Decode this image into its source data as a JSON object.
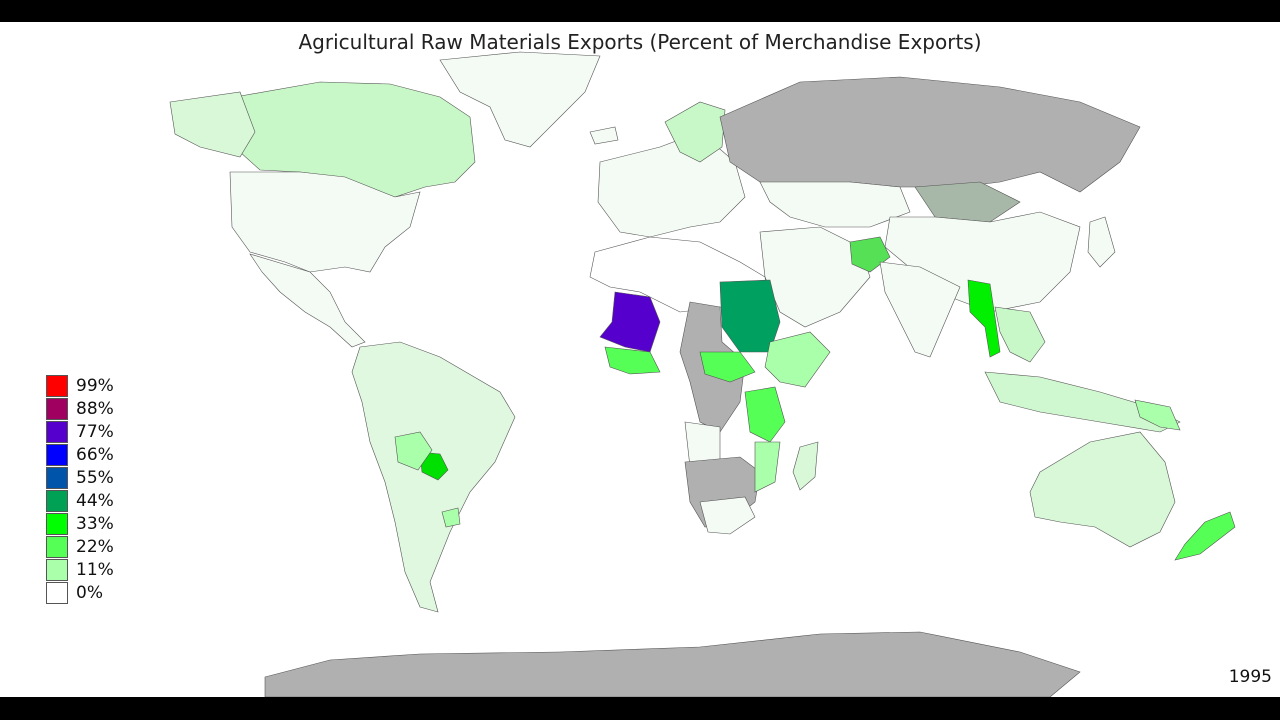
{
  "title": "Agricultural Raw Materials Exports (Percent of Merchandise Exports)",
  "year": "1995",
  "legend": [
    {
      "label": "99%",
      "color": "#ff0000"
    },
    {
      "label": "88%",
      "color": "#a0005f"
    },
    {
      "label": "77%",
      "color": "#5500cc"
    },
    {
      "label": "66%",
      "color": "#0000ff"
    },
    {
      "label": "55%",
      "color": "#0055aa"
    },
    {
      "label": "44%",
      "color": "#00a055"
    },
    {
      "label": "33%",
      "color": "#00ff00"
    },
    {
      "label": "22%",
      "color": "#55ff55"
    },
    {
      "label": "11%",
      "color": "#aaffaa"
    },
    {
      "label": "0%",
      "color": "#ffffff"
    }
  ],
  "colors": {
    "no_data": "#b0b0b0",
    "very_low": "#f4fbf4",
    "low": "#d8f8d8",
    "border": "#555555"
  }
}
